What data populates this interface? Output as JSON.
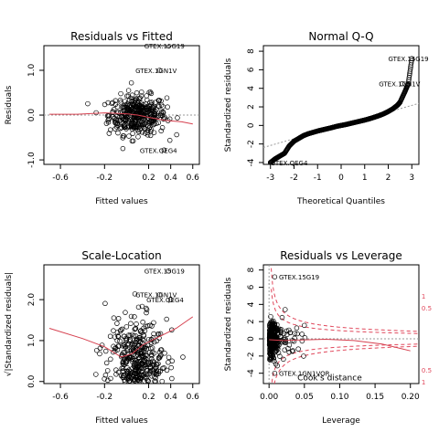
{
  "chart_data": [
    {
      "type": "scatter",
      "title": "Residuals vs Fitted",
      "xlabel": "Fitted values",
      "ylabel": "Residuals",
      "xlim": [
        -0.75,
        0.66
      ],
      "ylim": [
        -1.1,
        1.55
      ],
      "xticks": [
        -0.6,
        -0.2,
        0.0,
        0.2,
        0.4,
        0.6
      ],
      "xtick_labels": [
        "-0.6",
        "-0.2",
        "0.2",
        "0.4",
        "0.6"
      ],
      "xtick_values": [
        -0.6,
        -0.2,
        0.2,
        0.4,
        0.6
      ],
      "yticks": [
        -1.0,
        0.0,
        1.0
      ],
      "ytick_labels": [
        "-1.0",
        "0.0",
        "1.0"
      ],
      "reference_line": 0,
      "annotations": [
        {
          "text": "GTEX.15G19",
          "x": 0.16,
          "y": 1.55
        },
        {
          "text": "GTEX.1GN1V",
          "x": 0.08,
          "y": 1.0
        },
        {
          "text": "GTEX.QEG4",
          "x": 0.12,
          "y": -0.78
        }
      ],
      "smooth": {
        "x": [
          -0.7,
          -0.45,
          -0.2,
          0.0,
          0.1,
          0.2,
          0.35,
          0.5,
          0.6
        ],
        "y": [
          0.02,
          0.02,
          0.05,
          0.03,
          0.0,
          -0.05,
          -0.12,
          -0.15,
          -0.2
        ]
      },
      "cloud": {
        "x_center": 0.1,
        "x_sd": 0.13,
        "y_center": 0.0,
        "y_sd": 0.22
      }
    },
    {
      "type": "scatter",
      "title": "Normal Q-Q",
      "xlabel": "Theoretical Quantiles",
      "ylabel": "Standardized residuals",
      "xlim": [
        -3.3,
        3.3
      ],
      "ylim": [
        -4.2,
        8.6
      ],
      "xtick_values": [
        -3,
        -2,
        -1,
        0,
        1,
        2,
        3
      ],
      "xtick_labels": [
        "-3",
        "-2",
        "-1",
        "0",
        "1",
        "2",
        "3"
      ],
      "ytick_values": [
        -4,
        -2,
        0,
        2,
        4,
        6,
        8
      ],
      "ytick_labels": [
        "-4",
        "-2",
        "0",
        "2",
        "4",
        "6",
        "8"
      ],
      "reference_line": {
        "slope": 0.72,
        "intercept": 0.0
      },
      "annotations": [
        {
          "text": "GTEX.15G19",
          "x": 2.0,
          "y": 7.2
        },
        {
          "text": "GTEX.1GN1V",
          "x": 1.6,
          "y": 4.5
        },
        {
          "text": "GTEX.QEG4",
          "x": -3.0,
          "y": -4.0
        }
      ],
      "qq_points": {
        "x": [
          -3.0,
          -2.8,
          -2.6,
          -2.4,
          -2.2,
          -2.0,
          -1.8,
          -1.6,
          -1.4,
          -1.2,
          -1.0,
          -0.8,
          -0.6,
          -0.4,
          -0.2,
          0.0,
          0.2,
          0.4,
          0.6,
          0.8,
          1.0,
          1.2,
          1.4,
          1.6,
          1.8,
          2.0,
          2.2,
          2.4,
          2.5,
          2.7,
          2.85,
          3.0
        ],
        "y": [
          -4.0,
          -3.6,
          -3.3,
          -3.0,
          -2.2,
          -1.7,
          -1.4,
          -1.1,
          -0.9,
          -0.75,
          -0.6,
          -0.48,
          -0.36,
          -0.24,
          -0.1,
          0.0,
          0.1,
          0.22,
          0.34,
          0.46,
          0.58,
          0.72,
          0.88,
          1.05,
          1.25,
          1.5,
          1.8,
          2.2,
          2.5,
          3.6,
          4.5,
          7.2
        ]
      }
    },
    {
      "type": "scatter",
      "title": "Scale-Location",
      "xlabel": "Fitted values",
      "ylabel": "√|Standardized residuals|",
      "xlim": [
        -0.75,
        0.66
      ],
      "ylim": [
        -0.05,
        2.85
      ],
      "xtick_values": [
        -0.6,
        -0.2,
        0.2,
        0.4,
        0.6
      ],
      "xtick_labels": [
        "-0.6",
        "-0.2",
        "0.2",
        "0.4",
        "0.6"
      ],
      "ytick_values": [
        0.0,
        1.0,
        2.0
      ],
      "ytick_labels": [
        "0.0",
        "1.0",
        "2.0"
      ],
      "annotations": [
        {
          "text": "GTEX.15G19",
          "x": 0.16,
          "y": 2.7
        },
        {
          "text": "GTEX.1GN1V",
          "x": 0.08,
          "y": 2.12
        },
        {
          "text": "GTEX.QEG4",
          "x": 0.18,
          "y": 2.0
        }
      ],
      "smooth": {
        "x": [
          -0.7,
          -0.4,
          -0.2,
          -0.05,
          0.05,
          0.15,
          0.3,
          0.45,
          0.6
        ],
        "y": [
          1.3,
          1.05,
          0.85,
          0.6,
          0.68,
          0.9,
          1.1,
          1.3,
          1.58
        ]
      },
      "cloud": {
        "x_center": 0.1,
        "x_sd": 0.13,
        "y_center": 0.75,
        "y_sd": 0.4
      }
    },
    {
      "type": "scatter",
      "title": "Residuals vs Leverage",
      "xlabel": "Leverage",
      "ylabel": "Standardized residuals",
      "xlim": [
        -0.008,
        0.212
      ],
      "ylim": [
        -5.2,
        8.6
      ],
      "xtick_values": [
        0.0,
        0.05,
        0.1,
        0.15,
        0.2
      ],
      "xtick_labels": [
        "0.00",
        "0.05",
        "0.10",
        "0.15",
        "0.20"
      ],
      "ytick_values": [
        -4,
        -2,
        0,
        2,
        4,
        6,
        8
      ],
      "ytick_labels": [
        "-4",
        "-2",
        "0",
        "2",
        "4",
        "6",
        "8"
      ],
      "annotations": [
        {
          "text": "GTEX.15G19",
          "x": 0.014,
          "y": 7.2
        },
        {
          "text": "GTEX.1GN1VOR",
          "x": 0.014,
          "y": -4.0
        },
        {
          "text": "Cook's distance",
          "x": 0.04,
          "y": -4.5
        }
      ],
      "cook_labels": [
        {
          "text": "1",
          "x": 0.208,
          "y": 5.0
        },
        {
          "text": "0.5",
          "x": 0.208,
          "y": 3.6
        },
        {
          "text": "0.5",
          "x": 0.208,
          "y": -3.6
        },
        {
          "text": "1",
          "x": 0.208,
          "y": -5.0
        }
      ],
      "smooth": {
        "x": [
          0.0,
          0.02,
          0.04,
          0.08,
          0.12,
          0.16,
          0.2
        ],
        "y": [
          -0.1,
          -0.2,
          -0.15,
          -0.05,
          -0.2,
          -0.6,
          -1.4
        ]
      },
      "cloud": {
        "x_center": 0.004,
        "x_sd": 0.006,
        "y_center": 0.0,
        "y_sd": 1.0
      }
    }
  ]
}
